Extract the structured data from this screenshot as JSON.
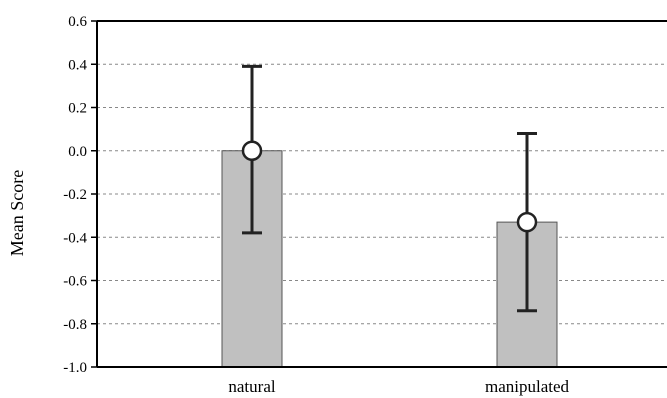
{
  "chart_data": {
    "type": "bar",
    "categories": [
      "natural",
      "manipulated"
    ],
    "values": [
      0.0,
      -0.33
    ],
    "error_bars": [
      {
        "low": -0.38,
        "high": 0.39
      },
      {
        "low": -0.74,
        "high": 0.08
      }
    ],
    "title": "",
    "xlabel": "",
    "ylabel": "Mean Score",
    "ylim": [
      -1.0,
      0.6
    ],
    "yticks": [
      "0.6",
      "0.4",
      "0.2",
      "0.0",
      "-0.2",
      "-0.4",
      "-0.6",
      "-0.8",
      "-1.0"
    ],
    "grid": true,
    "colors": {
      "bar_fill": "#c0c0c0",
      "bar_stroke": "#555555",
      "axis": "#000000",
      "grid": "#888888",
      "marker_fill": "#ffffff"
    }
  }
}
